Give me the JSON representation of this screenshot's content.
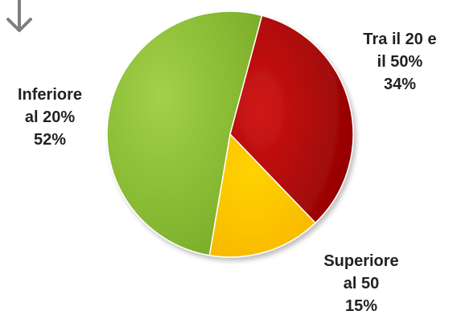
{
  "chart_data": {
    "type": "pie",
    "slices": [
      {
        "label_lines": [
          "Inferiore",
          "al 20%"
        ],
        "value": 52,
        "value_label": "52%",
        "color": "#8dc234"
      },
      {
        "label_lines": [
          "Tra il 20 e",
          "il 50%"
        ],
        "value": 34,
        "value_label": "34%",
        "color": "#b20e0e"
      },
      {
        "label_lines": [
          "Superiore",
          "al 50"
        ],
        "value": 15,
        "value_label": "15%",
        "color": "#fcc500"
      }
    ]
  },
  "decor": {
    "arrow_icon": "arrow-down-icon",
    "arrow_color": "#7f7f7f"
  }
}
